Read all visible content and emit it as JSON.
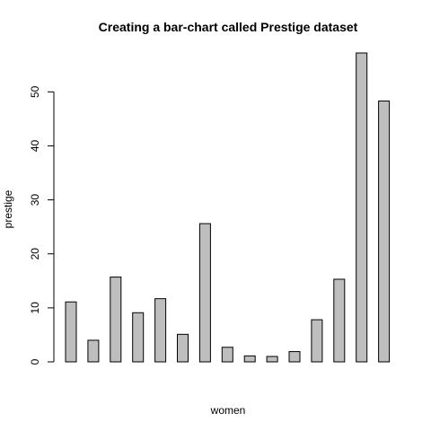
{
  "chart_data": {
    "type": "bar",
    "title": "Creating a bar-chart called Prestige dataset",
    "xlabel": "women",
    "ylabel": "prestige",
    "values": [
      11.1,
      4.0,
      15.7,
      9.1,
      11.7,
      5.1,
      25.6,
      2.7,
      1.1,
      1.0,
      1.9,
      7.8,
      15.3,
      57.2,
      48.3
    ],
    "ylim": [
      0,
      57.2
    ],
    "yticks": [
      0,
      10,
      20,
      30,
      40,
      50
    ],
    "bar_color": "#bebebe",
    "bar_border_color": "#000000",
    "grid": false,
    "legend": "none"
  }
}
